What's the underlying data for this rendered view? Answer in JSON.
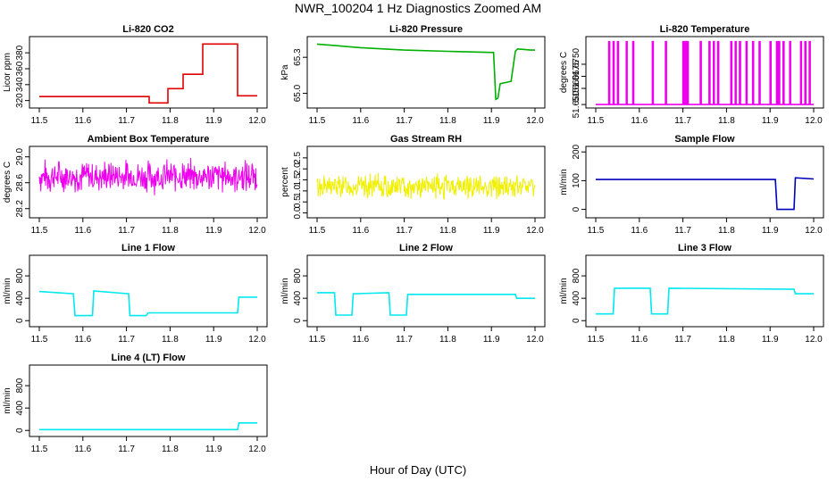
{
  "figure": {
    "title": "NWR_100204  1 Hz Diagnostics Zoomed AM",
    "xlabel": "Hour of Day (UTC)"
  },
  "chart_data": [
    {
      "type": "line",
      "title": "Li-820 CO2",
      "ylabel": "Licor ppm",
      "color": "#e00000",
      "xlim": [
        11.5,
        12.0
      ],
      "ylim": [
        314,
        397
      ],
      "xticks": [
        "11.5",
        "11.6",
        "11.7",
        "11.8",
        "11.9",
        "12.0"
      ],
      "yticks": [
        {
          "v": 320,
          "label": "320"
        },
        {
          "v": 340,
          "label": "340"
        },
        {
          "v": 360,
          "label": "360"
        },
        {
          "v": 380,
          "label": "380"
        }
      ],
      "x": [
        11.5,
        11.752,
        11.752,
        11.795,
        11.795,
        11.83,
        11.83,
        11.875,
        11.875,
        11.955,
        11.955,
        12.0
      ],
      "y": [
        325,
        325,
        317,
        317,
        335,
        335,
        353,
        353,
        391,
        391,
        326,
        326
      ]
    },
    {
      "type": "line",
      "title": "Li-820 Pressure",
      "ylabel": "kPa",
      "color": "#00b000",
      "xlim": [
        11.5,
        12.0
      ],
      "ylim": [
        64.9,
        65.45
      ],
      "xticks": [
        "11.5",
        "11.6",
        "11.7",
        "11.8",
        "11.9",
        "12.0"
      ],
      "yticks": [
        {
          "v": 65.0,
          "label": "65.0"
        },
        {
          "v": 65.3,
          "label": "65.3"
        }
      ],
      "x": [
        11.5,
        11.6,
        11.7,
        11.8,
        11.905,
        11.91,
        11.915,
        11.92,
        11.945,
        11.955,
        11.96,
        11.99,
        12.0
      ],
      "y": [
        65.41,
        65.38,
        65.36,
        65.35,
        65.34,
        64.95,
        64.96,
        65.08,
        65.1,
        65.35,
        65.37,
        65.36,
        65.36
      ]
    },
    {
      "type": "line",
      "title": "Li-820 Temperature",
      "ylabel": "degrees C",
      "color": "#ee00ee",
      "xlim": [
        11.5,
        12.0
      ],
      "ylim": [
        51.6495,
        51.6905
      ],
      "xticks": [
        "11.5",
        "11.6",
        "11.7",
        "11.8",
        "11.9",
        "12.0"
      ],
      "yticks": [
        {
          "v": 51.65,
          "label": "51.650"
        },
        {
          "v": 51.66,
          "label": "51.660"
        },
        {
          "v": 51.6675,
          "label": "51.6675"
        },
        {
          "v": 51.675,
          "label": "51.6750"
        }
      ],
      "baseline": 51.65,
      "peak": 51.689,
      "spikes": [
        11.53,
        11.54,
        11.55,
        11.57,
        11.585,
        11.63,
        11.66,
        11.7,
        11.705,
        11.71,
        11.74,
        11.76,
        11.77,
        11.78,
        11.81,
        11.82,
        11.83,
        11.845,
        11.86,
        11.875,
        11.9,
        11.915,
        11.92,
        11.93,
        11.945,
        11.97,
        11.98,
        11.99
      ]
    },
    {
      "type": "line",
      "title": "Ambient Box Temperature",
      "ylabel": "degrees C",
      "color": "#ee00ee",
      "xlim": [
        11.5,
        12.0
      ],
      "ylim": [
        28.1,
        29.12
      ],
      "xticks": [
        "11.5",
        "11.6",
        "11.7",
        "11.8",
        "11.9",
        "12.0"
      ],
      "yticks": [
        {
          "v": 28.2,
          "label": "28.2"
        },
        {
          "v": 28.6,
          "label": "28.6"
        },
        {
          "v": 29.0,
          "label": "29.0"
        }
      ],
      "noise": {
        "center": 28.7,
        "amp": 0.3,
        "n": 420,
        "seed": 7
      }
    },
    {
      "type": "line",
      "title": "Gas Stream RH",
      "ylabel": "percent",
      "color": "#f0f000",
      "xlim": [
        11.5,
        12.0
      ],
      "ylim": [
        -0.1,
        2.9
      ],
      "xticks": [
        "11.5",
        "11.6",
        "11.7",
        "11.8",
        "11.9",
        "12.0"
      ],
      "yticks": [
        {
          "v": 0,
          "label": "0.0"
        },
        {
          "v": 0.5,
          "label": "0.5"
        },
        {
          "v": 1,
          "label": "1.0"
        },
        {
          "v": 1.5,
          "label": "1.5"
        },
        {
          "v": 2,
          "label": "2.0"
        },
        {
          "v": 2.5,
          "label": "2.5"
        }
      ],
      "noise": {
        "center": 1.2,
        "amp": 0.65,
        "n": 420,
        "seed": 13
      }
    },
    {
      "type": "line",
      "title": "Sample Flow",
      "ylabel": "ml/min",
      "color": "#0000bb",
      "xlim": [
        11.5,
        12.0
      ],
      "ylim": [
        -20,
        210
      ],
      "xticks": [
        "11.5",
        "11.6",
        "11.7",
        "11.8",
        "11.9",
        "12.0"
      ],
      "yticks": [
        {
          "v": 0,
          "label": "0"
        },
        {
          "v": 100,
          "label": "100"
        },
        {
          "v": 200,
          "label": "200"
        }
      ],
      "x": [
        11.5,
        11.912,
        11.916,
        11.955,
        11.958,
        12.0
      ],
      "y": [
        104,
        104,
        0,
        0,
        110,
        106
      ]
    },
    {
      "type": "line",
      "title": "Line 1 Flow",
      "ylabel": "ml/min",
      "color": "#00e8f0",
      "xlim": [
        11.5,
        12.0
      ],
      "ylim": [
        -60,
        1120
      ],
      "xticks": [
        "11.5",
        "11.6",
        "11.7",
        "11.8",
        "11.9",
        "12.0"
      ],
      "yticks": [
        {
          "v": 0,
          "label": "0"
        },
        {
          "v": 400,
          "label": "400"
        },
        {
          "v": 800,
          "label": "800"
        }
      ],
      "x": [
        11.5,
        11.578,
        11.582,
        11.622,
        11.625,
        11.705,
        11.708,
        11.745,
        11.75,
        11.955,
        11.958,
        12.0
      ],
      "y": [
        520,
        480,
        90,
        90,
        530,
        480,
        90,
        90,
        140,
        140,
        420,
        420
      ]
    },
    {
      "type": "line",
      "title": "Line 2 Flow",
      "ylabel": "ml/min",
      "color": "#00e8f0",
      "xlim": [
        11.5,
        12.0
      ],
      "ylim": [
        -60,
        1120
      ],
      "xticks": [
        "11.5",
        "11.6",
        "11.7",
        "11.8",
        "11.9",
        "12.0"
      ],
      "yticks": [
        {
          "v": 0,
          "label": "0"
        },
        {
          "v": 400,
          "label": "400"
        },
        {
          "v": 800,
          "label": "800"
        }
      ],
      "x": [
        11.5,
        11.54,
        11.543,
        11.58,
        11.583,
        11.665,
        11.668,
        11.705,
        11.708,
        11.955,
        11.958,
        12.0
      ],
      "y": [
        500,
        500,
        100,
        100,
        480,
        500,
        100,
        100,
        470,
        470,
        400,
        400
      ]
    },
    {
      "type": "line",
      "title": "Line 3 Flow",
      "ylabel": "ml/min",
      "color": "#00e8f0",
      "xlim": [
        11.5,
        12.0
      ],
      "ylim": [
        -60,
        1120
      ],
      "xticks": [
        "11.5",
        "11.6",
        "11.7",
        "11.8",
        "11.9",
        "12.0"
      ],
      "yticks": [
        {
          "v": 0,
          "label": "0"
        },
        {
          "v": 400,
          "label": "400"
        },
        {
          "v": 800,
          "label": "800"
        }
      ],
      "x": [
        11.5,
        11.54,
        11.543,
        11.625,
        11.628,
        11.665,
        11.668,
        11.955,
        11.958,
        12.0
      ],
      "y": [
        120,
        120,
        580,
        580,
        120,
        120,
        580,
        560,
        480,
        480
      ]
    },
    {
      "type": "line",
      "title": "Line 4 (LT) Flow",
      "ylabel": "ml/min",
      "color": "#00e8f0",
      "xlim": [
        11.5,
        12.0
      ],
      "ylim": [
        -60,
        1120
      ],
      "xticks": [
        "11.5",
        "11.6",
        "11.7",
        "11.8",
        "11.9",
        "12.0"
      ],
      "yticks": [
        {
          "v": 0,
          "label": "0"
        },
        {
          "v": 400,
          "label": "400"
        },
        {
          "v": 800,
          "label": "800"
        }
      ],
      "x": [
        11.5,
        11.955,
        11.958,
        12.0
      ],
      "y": [
        15,
        15,
        135,
        135
      ]
    }
  ]
}
